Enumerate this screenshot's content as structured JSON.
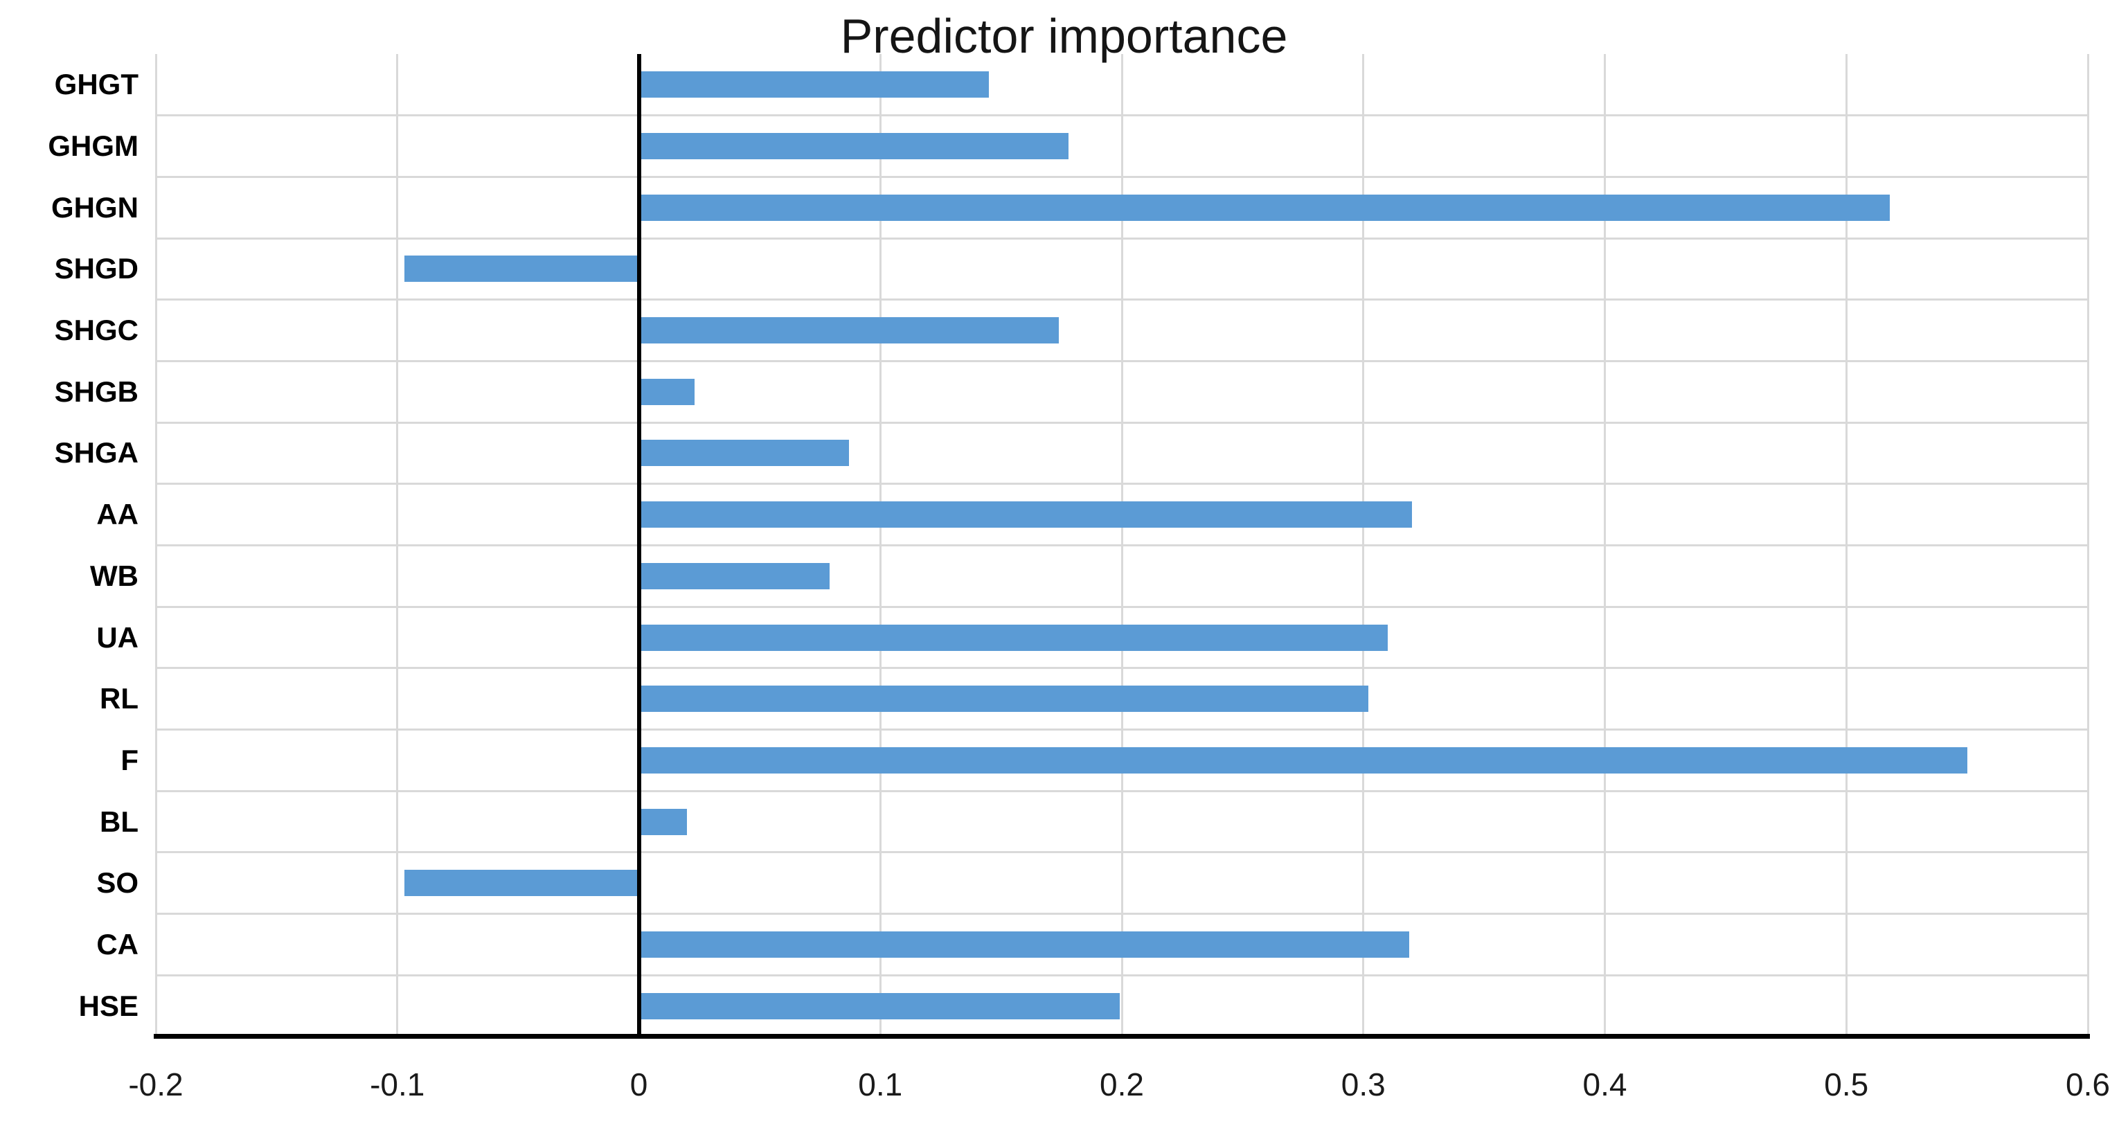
{
  "chart_data": {
    "type": "bar",
    "orientation": "horizontal",
    "title": "Predictor importance",
    "categories": [
      "GHGT",
      "GHGM",
      "GHGN",
      "SHGD",
      "SHGC",
      "SHGB",
      "SHGA",
      "AA",
      "WB",
      "UA",
      "RL",
      "F",
      "BL",
      "SO",
      "CA",
      "HSE"
    ],
    "values": [
      0.145,
      0.178,
      0.518,
      -0.097,
      0.174,
      0.023,
      0.087,
      0.32,
      0.079,
      0.31,
      0.302,
      0.55,
      0.02,
      -0.097,
      0.319,
      0.199
    ],
    "xlabel": "",
    "ylabel": "",
    "xlim": [
      -0.2,
      0.6
    ],
    "xticks": [
      -0.2,
      -0.1,
      0,
      0.1,
      0.2,
      0.3,
      0.4,
      0.5,
      0.6
    ],
    "xtick_labels": [
      "-0.2",
      "-0.1",
      "0",
      "0.1",
      "0.2",
      "0.3",
      "0.4",
      "0.5",
      "0.6"
    ],
    "grid": true,
    "legend": false,
    "bar_color": "#5B9BD5",
    "gridline_color": "#D9D9D9",
    "zero_line_color": "#000000",
    "axis_color": "#000000"
  }
}
